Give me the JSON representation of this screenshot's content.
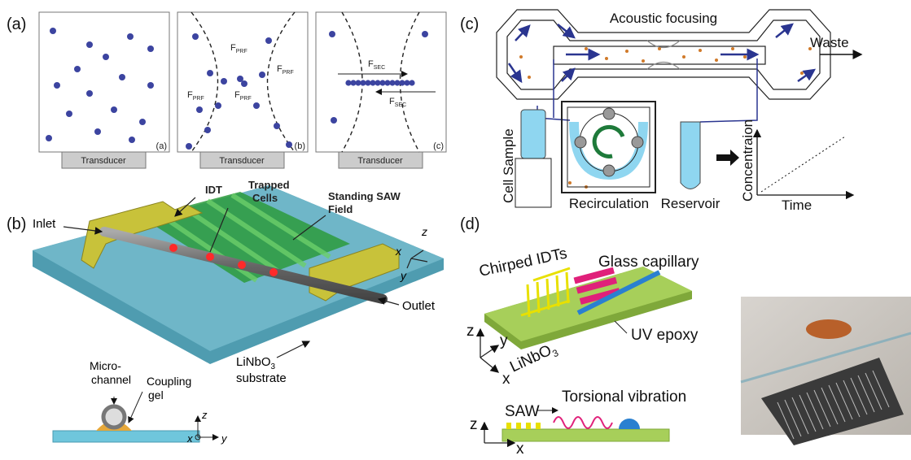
{
  "panel_a": {
    "label": "(a)",
    "subpanels": [
      {
        "label": "(a)",
        "transducer": "Transducer"
      },
      {
        "label": "(b)",
        "transducer": "Transducer"
      },
      {
        "label": "(c)",
        "transducer": "Transducer"
      }
    ],
    "force_prf": {
      "symbol": "F",
      "subscript": "PRF"
    },
    "force_sec": {
      "symbol": "F",
      "subscript": "SEC"
    }
  },
  "panel_b": {
    "label": "(b)",
    "idt": "IDT",
    "trapped_cells": [
      "Trapped",
      "Cells"
    ],
    "standing_saw": [
      "Standing SAW",
      "Field"
    ],
    "inlet": "Inlet",
    "outlet": "Outlet",
    "substrate": {
      "base": "LiNbO",
      "subscript": "3",
      "line2": "substrate"
    },
    "axes": {
      "z": "z",
      "x": "x",
      "y": "y"
    },
    "inset": {
      "microchannel": [
        "Micro-",
        "channel"
      ],
      "coupling_gel": [
        "Coupling",
        "gel"
      ],
      "axes": {
        "z": "z",
        "x": "x",
        "y": "y"
      }
    }
  },
  "panel_c": {
    "label": "(c)",
    "acoustic_focusing": "Acoustic focusing",
    "waste": "Waste",
    "cell_sample": "Cell Sample",
    "recirculation": "Recirculation",
    "reservoir": "Reservoir",
    "graph": {
      "y_label": "Concentraion",
      "x_label": "Time"
    }
  },
  "panel_d": {
    "label": "(d)",
    "chirped_idts": "Chirped IDTs",
    "glass_capillary": "Glass capillary",
    "uv_epoxy": "UV epoxy",
    "substrate": {
      "base": "LiNbO",
      "subscript": "3"
    },
    "axes": {
      "z": "z",
      "y": "y",
      "x": "x"
    },
    "saw": "SAW",
    "torsional_vibration": "Torsional vibration",
    "inset_axes": {
      "z": "z",
      "x": "x"
    }
  }
}
